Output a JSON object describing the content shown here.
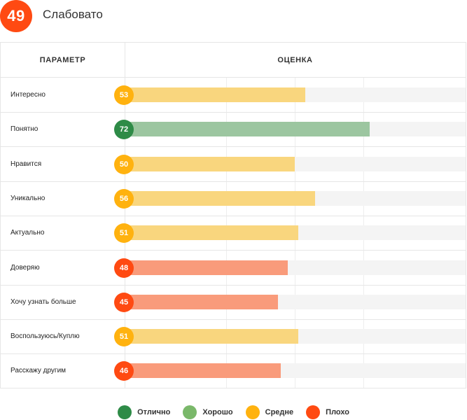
{
  "header": {
    "score": "49",
    "score_label": "Слабовато",
    "score_color": "#ff4a12"
  },
  "table": {
    "col_param": "ПАРАМЕТР",
    "col_score": "ОЦЕНКА"
  },
  "colors": {
    "excellent": "#2e8b47",
    "good": "#7ab86a",
    "average": "#ffb20f",
    "poor": "#ff4a12",
    "bar_good": "#9cc6a0",
    "bar_average": "#f9d67e",
    "bar_poor": "#f99b7b"
  },
  "chart_data": {
    "type": "bar",
    "orientation": "horizontal",
    "xlim": [
      0,
      100
    ],
    "categories": [
      "Интересно",
      "Понятно",
      "Нравится",
      "Уникально",
      "Актуально",
      "Доверяю",
      "Хочу узнать больше",
      "Воспользуюсь/Куплю",
      "Расскажу другим"
    ],
    "values": [
      53,
      72,
      50,
      56,
      51,
      48,
      45,
      51,
      46
    ],
    "ratings": [
      "average",
      "good",
      "average",
      "average",
      "average",
      "poor",
      "poor",
      "average",
      "poor"
    ],
    "legend": [
      {
        "label": "Отлично",
        "key": "excellent"
      },
      {
        "label": "Хорошо",
        "key": "good"
      },
      {
        "label": "Средне",
        "key": "average"
      },
      {
        "label": "Плохо",
        "key": "poor"
      }
    ],
    "legend_position": "bottom"
  }
}
